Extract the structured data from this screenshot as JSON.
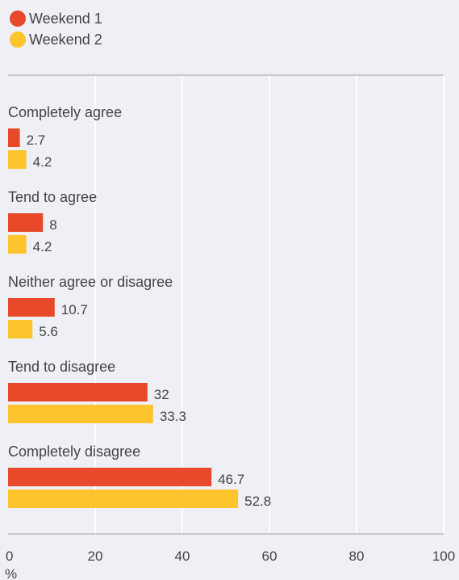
{
  "chart_data": {
    "type": "bar",
    "orientation": "horizontal",
    "categories": [
      "Completely agree",
      "Tend to agree",
      "Neither agree or disagree",
      "Tend to disagree",
      "Completely disagree"
    ],
    "series": [
      {
        "name": "Weekend 1",
        "color": "#e8492a",
        "values": [
          2.7,
          8,
          10.7,
          32,
          46.7
        ],
        "value_labels": [
          "2.7",
          "8",
          "10.7",
          "32",
          "46.7"
        ]
      },
      {
        "name": "Weekend 2",
        "color": "#fdc42e",
        "values": [
          4.2,
          4.2,
          5.6,
          33.3,
          52.8
        ],
        "value_labels": [
          "4.2",
          "4.2",
          "5.6",
          "33.3",
          "52.8"
        ]
      }
    ],
    "xlim": [
      0,
      100
    ],
    "x_ticks": [
      0,
      20,
      40,
      60,
      80,
      100
    ],
    "x_tick_labels": [
      "0",
      "20",
      "40",
      "60",
      "80",
      "100"
    ],
    "xlabel": "%",
    "grid": true,
    "legend_position": "top-left"
  }
}
